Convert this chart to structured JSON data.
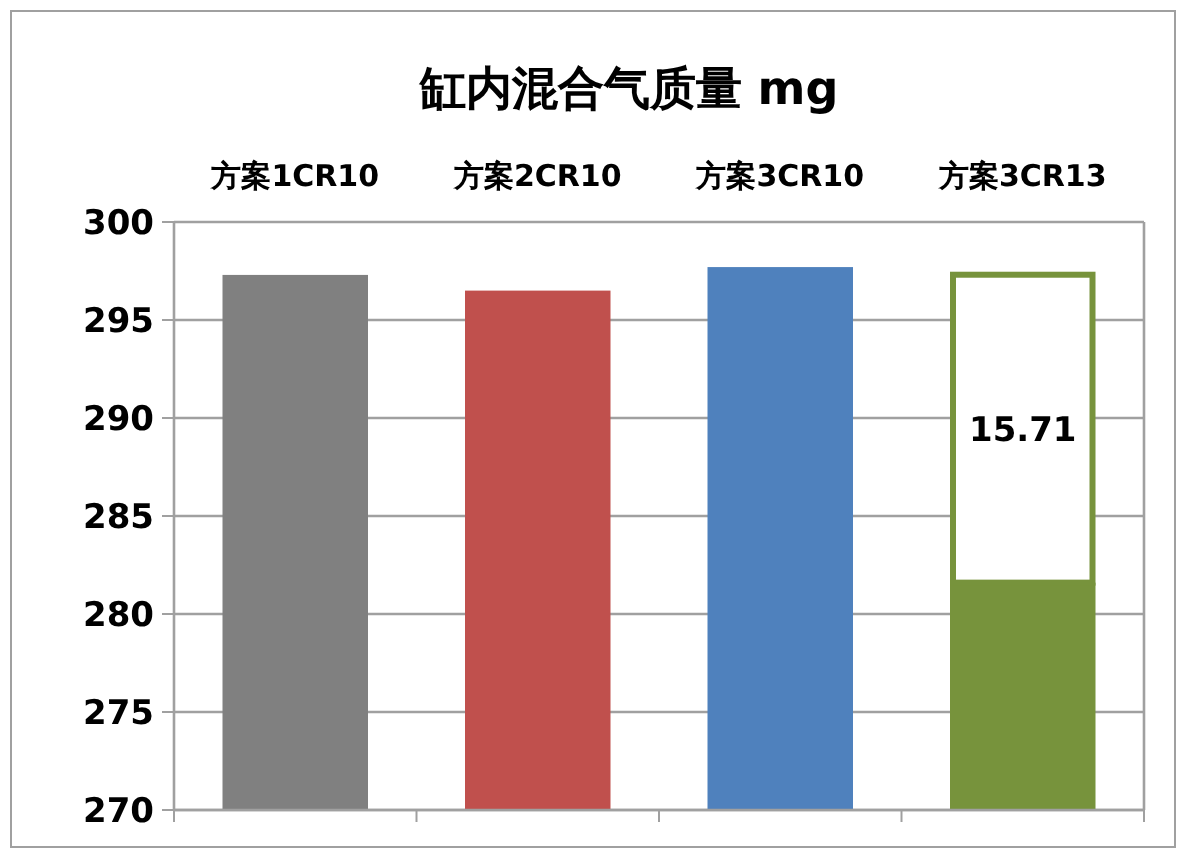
{
  "chart_data": {
    "type": "bar",
    "title": "缸内混合气质量 mg",
    "categories": [
      "方案1CR10",
      "方案2CR10",
      "方案3CR10",
      "方案3CR13"
    ],
    "series": [
      {
        "colors": [
          "#808080",
          "#c0504d",
          "#4f81bd",
          "#77933c"
        ],
        "values": [
          297.3,
          296.5,
          297.7,
          281.6
        ]
      },
      {
        "color": "#ffffff",
        "base": [
          null,
          null,
          null,
          281.6
        ],
        "values": [
          null,
          null,
          null,
          15.71
        ],
        "value_labels": [
          null,
          null,
          null,
          "15.71"
        ]
      }
    ],
    "ylim": [
      270,
      300
    ],
    "yticks": [
      270,
      275,
      280,
      285,
      290,
      295,
      300
    ],
    "grid": "y"
  }
}
